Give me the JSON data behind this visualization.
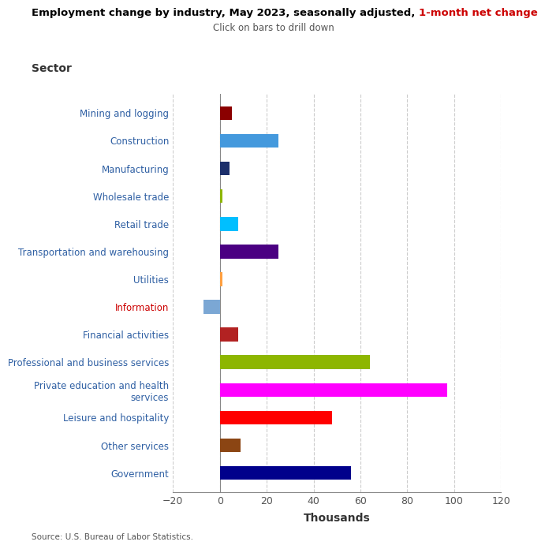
{
  "categories": [
    "Government",
    "Other services",
    "Leisure and hospitality",
    "Private education and health\nservices",
    "Professional and business services",
    "Financial activities",
    "Information",
    "Utilities",
    "Transportation and warehousing",
    "Retail trade",
    "Wholesale trade",
    "Manufacturing",
    "Construction",
    "Mining and logging"
  ],
  "values": [
    56,
    9,
    48,
    97,
    64,
    8,
    -7,
    1,
    25,
    8,
    1,
    4,
    25,
    5
  ],
  "colors": [
    "#00008B",
    "#8B4513",
    "#FF0000",
    "#FF00FF",
    "#8DB600",
    "#B22222",
    "#7BA7D4",
    "#FFA040",
    "#4B0082",
    "#00BFFF",
    "#8DB600",
    "#1C2F6B",
    "#4499DD",
    "#8B0000"
  ],
  "label_colors": [
    "#2E5FA3",
    "#2E5FA3",
    "#2E5FA3",
    "#2E5FA3",
    "#2E5FA3",
    "#2E5FA3",
    "#CC0000",
    "#2E5FA3",
    "#2E5FA3",
    "#2E5FA3",
    "#2E5FA3",
    "#2E5FA3",
    "#2E5FA3",
    "#2E5FA3"
  ],
  "title_black": "Employment change by industry, May 2023, seasonally adjusted, ",
  "title_red": "1-month net change",
  "subtitle": "Click on bars to drill down",
  "ylabel": "Sector",
  "xlabel": "Thousands",
  "xlim": [
    -20,
    120
  ],
  "xticks": [
    -20,
    0,
    20,
    40,
    60,
    80,
    100,
    120
  ],
  "source": "Source: U.S. Bureau of Labor Statistics.",
  "bg_color": "#FFFFFF",
  "grid_color": "#CCCCCC"
}
